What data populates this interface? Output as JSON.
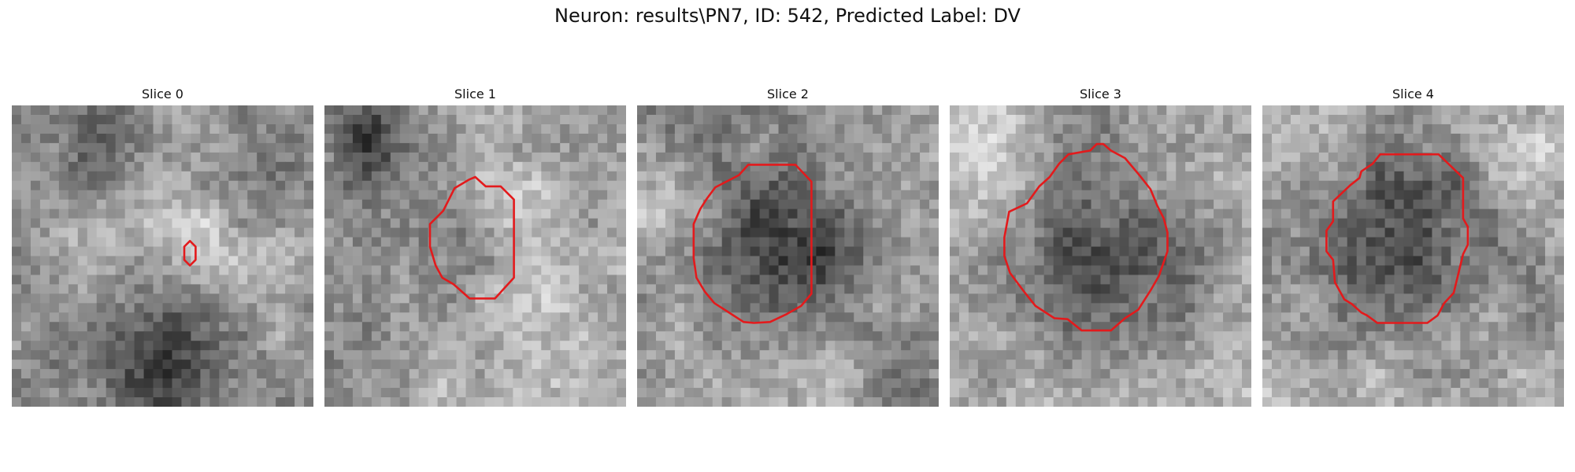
{
  "figure": {
    "title": "Neuron: results\\PN7, ID: 542, Predicted Label: DV"
  },
  "panels": [
    {
      "title": "Slice 0",
      "contour_color": "#e31a1c"
    },
    {
      "title": "Slice 1",
      "contour_color": "#e31a1c"
    },
    {
      "title": "Slice 2",
      "contour_color": "#e31a1c"
    },
    {
      "title": "Slice 3",
      "contour_color": "#e31a1c"
    },
    {
      "title": "Slice 4",
      "contour_color": "#e31a1c"
    }
  ]
}
